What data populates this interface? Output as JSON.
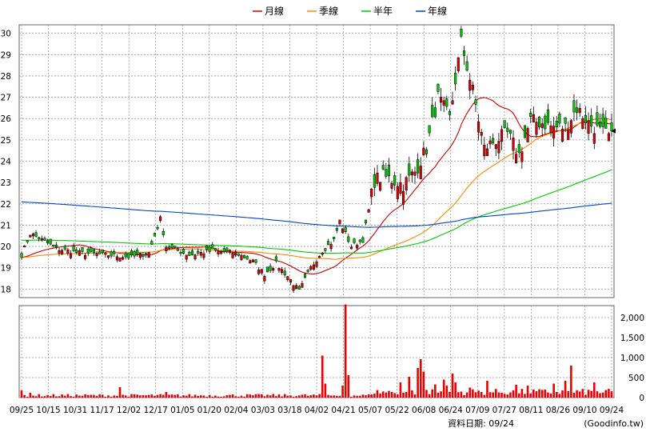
{
  "chart_data": {
    "type": "candlestick",
    "legend": [
      {
        "name": "月線",
        "color": "#cc0000"
      },
      {
        "name": "季線",
        "color": "#ff8800"
      },
      {
        "name": "半年",
        "color": "#00cc00"
      },
      {
        "name": "年線",
        "color": "#0044cc"
      }
    ],
    "price_axis": {
      "min": 17.6,
      "max": 30.4,
      "ticks": [
        18,
        19,
        20,
        21,
        22,
        23,
        24,
        25,
        26,
        27,
        28,
        29,
        30
      ]
    },
    "volume_axis": {
      "min": 0,
      "max": 2300,
      "ticks": [
        0,
        500,
        1000,
        1500,
        2000
      ],
      "tick_labels": [
        "0",
        "500",
        "1,000",
        "1,500",
        "2,000"
      ]
    },
    "x_labels": [
      "09/25",
      "10/15",
      "10/31",
      "11/17",
      "12/02",
      "12/17",
      "01/05",
      "01/20",
      "02/04",
      "03/03",
      "03/18",
      "04/02",
      "04/21",
      "05/07",
      "05/22",
      "06/08",
      "06/24",
      "07/09",
      "07/27",
      "08/11",
      "08/26",
      "09/10",
      "09/24"
    ],
    "price_keypoints": [
      [
        0,
        19.6
      ],
      [
        3,
        20.6
      ],
      [
        6,
        20.4
      ],
      [
        12,
        19.9
      ],
      [
        20,
        19.7
      ],
      [
        30,
        19.6
      ],
      [
        38,
        19.5
      ],
      [
        44,
        19.7
      ],
      [
        48,
        21.3
      ],
      [
        50,
        20.0
      ],
      [
        58,
        19.6
      ],
      [
        66,
        19.8
      ],
      [
        74,
        19.7
      ],
      [
        80,
        19.3
      ],
      [
        84,
        18.7
      ],
      [
        88,
        19.2
      ],
      [
        92,
        18.6
      ],
      [
        96,
        17.9
      ],
      [
        100,
        19.0
      ],
      [
        104,
        19.8
      ],
      [
        108,
        20.3
      ],
      [
        110,
        21.2
      ],
      [
        114,
        20.0
      ],
      [
        118,
        20.3
      ],
      [
        122,
        23.1
      ],
      [
        125,
        23.3
      ],
      [
        132,
        22.9
      ],
      [
        136,
        23.5
      ],
      [
        140,
        24.6
      ],
      [
        144,
        27.0
      ],
      [
        148,
        26.0
      ],
      [
        152,
        29.6
      ],
      [
        156,
        27.3
      ],
      [
        160,
        24.6
      ],
      [
        164,
        25.0
      ],
      [
        168,
        25.3
      ],
      [
        172,
        24.3
      ],
      [
        176,
        25.9
      ],
      [
        180,
        25.8
      ],
      [
        184,
        25.6
      ],
      [
        188,
        25.6
      ],
      [
        192,
        26.5
      ],
      [
        196,
        25.8
      ],
      [
        200,
        25.4
      ],
      [
        204,
        25.1
      ]
    ],
    "ma_periods": {
      "月線": 20,
      "季線": 60,
      "半年": 120,
      "年線": 240
    },
    "ma_start": {
      "半年": 20.3,
      "年線": 22.1
    },
    "volume_spikes": [
      [
        0,
        180
      ],
      [
        3,
        120
      ],
      [
        34,
        260
      ],
      [
        50,
        140
      ],
      [
        104,
        1050
      ],
      [
        105,
        350
      ],
      [
        111,
        300
      ],
      [
        112,
        2330
      ],
      [
        113,
        560
      ],
      [
        131,
        380
      ],
      [
        134,
        520
      ],
      [
        137,
        740
      ],
      [
        138,
        960
      ],
      [
        139,
        650
      ],
      [
        143,
        330
      ],
      [
        146,
        450
      ],
      [
        147,
        300
      ],
      [
        149,
        600
      ],
      [
        150,
        380
      ],
      [
        155,
        250
      ],
      [
        161,
        420
      ],
      [
        171,
        320
      ],
      [
        175,
        300
      ],
      [
        184,
        350
      ],
      [
        188,
        420
      ],
      [
        190,
        800
      ],
      [
        198,
        380
      ]
    ],
    "footer_label": "資料日期: 09/24",
    "source_label": "(Goodinfo.tw)"
  }
}
